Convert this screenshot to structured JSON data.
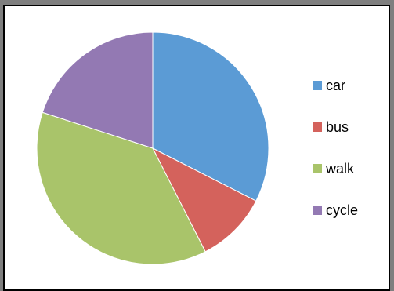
{
  "chart_data": {
    "type": "pie",
    "categories": [
      "car",
      "bus",
      "walk",
      "cycle"
    ],
    "values": [
      32.5,
      10,
      37.5,
      20
    ],
    "colors": [
      "#5b9bd5",
      "#d4625c",
      "#a9c46a",
      "#9379b3"
    ],
    "title": "",
    "legend": "right",
    "start_angle": "top",
    "direction": "clockwise"
  }
}
